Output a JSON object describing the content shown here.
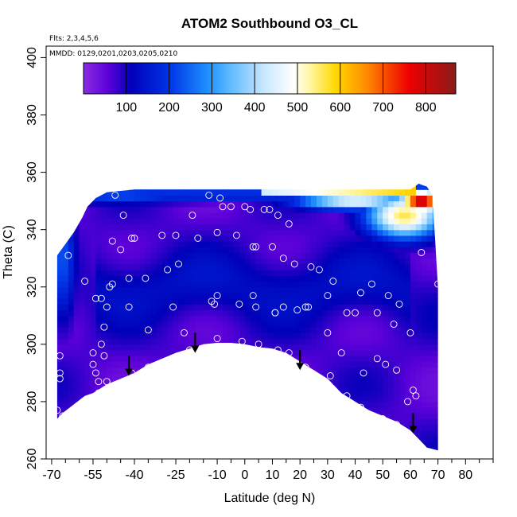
{
  "chart_data": {
    "type": "heatmap",
    "title": "ATOM2 Southbound O3_CL",
    "flights_note": "Flts: 2,3,4,5,6",
    "dates_note": "MMDD: 0129,0201,0203,0205,0210",
    "xlabel": "Latitude (deg N)",
    "ylabel": "Theta (C)",
    "xlim": [
      -72,
      90
    ],
    "ylim": [
      260,
      404
    ],
    "x_ticks": [
      -70,
      -55,
      -40,
      -25,
      -10,
      0,
      10,
      20,
      30,
      40,
      50,
      60,
      70,
      80
    ],
    "x_tick_labels": [
      "-70",
      "-55",
      "-40",
      "-25",
      "-10",
      "0",
      "10",
      "20",
      "30",
      "40",
      "50",
      "60",
      "70",
      "80"
    ],
    "x_minor_ticks": [
      -65,
      -60,
      -50,
      -45,
      -35,
      -30,
      -20,
      -15,
      -5,
      5,
      15,
      25,
      35,
      45,
      55,
      65,
      75,
      85,
      90
    ],
    "y_ticks": [
      260,
      280,
      300,
      320,
      340,
      360,
      380,
      400
    ],
    "y_tick_labels": [
      "260",
      "280",
      "300",
      "320",
      "340",
      "360",
      "380",
      "400"
    ],
    "colorbar": {
      "range": [
        0,
        870
      ],
      "ticks": [
        100,
        200,
        300,
        400,
        500,
        600,
        700,
        800
      ],
      "tick_labels": [
        "100",
        "200",
        "300",
        "400",
        "500",
        "600",
        "700",
        "800"
      ],
      "stops": [
        {
          "v": 0,
          "c": "#8a2be2"
        },
        {
          "v": 60,
          "c": "#5a00d8"
        },
        {
          "v": 110,
          "c": "#0000b8"
        },
        {
          "v": 200,
          "c": "#0033e6"
        },
        {
          "v": 290,
          "c": "#1e90ff"
        },
        {
          "v": 340,
          "c": "#5bb8ff"
        },
        {
          "v": 420,
          "c": "#c6e6ff"
        },
        {
          "v": 490,
          "c": "#ffffff"
        },
        {
          "v": 530,
          "c": "#fff6a0"
        },
        {
          "v": 590,
          "c": "#ffd700"
        },
        {
          "v": 660,
          "c": "#ff8c00"
        },
        {
          "v": 760,
          "c": "#ee0000"
        },
        {
          "v": 870,
          "c": "#8b1a1a"
        }
      ]
    },
    "surface_boundary": [
      [
        -68,
        274
      ],
      [
        -66,
        276
      ],
      [
        -62,
        279
      ],
      [
        -58,
        282
      ],
      [
        -55,
        283
      ],
      [
        -50,
        286
      ],
      [
        -45,
        288
      ],
      [
        -40,
        290
      ],
      [
        -35,
        293
      ],
      [
        -30,
        295
      ],
      [
        -25,
        297
      ],
      [
        -20,
        298.5
      ],
      [
        -15,
        300
      ],
      [
        -10,
        300.5
      ],
      [
        -5,
        300.5
      ],
      [
        0,
        300
      ],
      [
        5,
        299
      ],
      [
        10,
        298.5
      ],
      [
        15,
        297
      ],
      [
        20,
        294
      ],
      [
        25,
        291
      ],
      [
        30,
        288
      ],
      [
        35,
        283
      ],
      [
        40,
        280
      ],
      [
        45,
        277
      ],
      [
        50,
        275
      ],
      [
        55,
        273
      ],
      [
        60,
        270
      ],
      [
        63,
        267
      ],
      [
        66,
        264
      ],
      [
        70,
        263
      ]
    ],
    "top_boundary": [
      [
        -68,
        331
      ],
      [
        -65,
        335
      ],
      [
        -62,
        339
      ],
      [
        -59,
        344
      ],
      [
        -57,
        348
      ],
      [
        -54,
        351
      ],
      [
        -50,
        353
      ],
      [
        -40,
        354
      ],
      [
        -20,
        354
      ],
      [
        0,
        354
      ],
      [
        20,
        354
      ],
      [
        40,
        354
      ],
      [
        60,
        354
      ],
      [
        63,
        356
      ],
      [
        66,
        355
      ],
      [
        68,
        352
      ],
      [
        70,
        320
      ]
    ],
    "field_features": [
      {
        "name": "background",
        "value": 40
      },
      {
        "name": "upper-high-ozone-core",
        "lat": 64,
        "theta": 350,
        "value": 840,
        "lat_width": 8,
        "theta_width": 4
      },
      {
        "name": "upper-ozone-ridge",
        "lat": 58,
        "theta": 345,
        "value": 560,
        "lat_width": 14,
        "theta_width": 8
      },
      {
        "name": "subtropical-jet-band",
        "lat": 40,
        "theta": 350,
        "value": 480,
        "lat_width": 22,
        "theta_width": 3
      },
      {
        "name": "southern-upper-band",
        "lat": -45,
        "theta": 352,
        "value": 230,
        "lat_width": 30,
        "theta_width": 3
      },
      {
        "name": "southern-edge",
        "lat": -66,
        "theta": 330,
        "value": 230,
        "lat_width": 5,
        "theta_width": 22
      }
    ],
    "descent_arrows": [
      {
        "lat": -42,
        "theta_top": 296,
        "theta_bottom": 289
      },
      {
        "lat": -18,
        "theta_top": 304,
        "theta_bottom": 297
      },
      {
        "lat": 20,
        "theta_top": 298,
        "theta_bottom": 291
      },
      {
        "lat": 61,
        "theta_top": 276,
        "theta_bottom": 269
      }
    ],
    "observations": [
      [
        -68,
        277
      ],
      [
        -67,
        290
      ],
      [
        -67,
        288
      ],
      [
        -67,
        296
      ],
      [
        -66,
        275
      ],
      [
        -64,
        331
      ],
      [
        -58,
        322
      ],
      [
        -55,
        297
      ],
      [
        -55,
        293
      ],
      [
        -54,
        316
      ],
      [
        -54,
        290
      ],
      [
        -53,
        287
      ],
      [
        -53,
        283
      ],
      [
        -52,
        300
      ],
      [
        -52,
        316
      ],
      [
        -51,
        306
      ],
      [
        -51,
        296
      ],
      [
        -50,
        313
      ],
      [
        -50,
        287
      ],
      [
        -49,
        320
      ],
      [
        -48,
        321
      ],
      [
        -48,
        336
      ],
      [
        -47,
        352
      ],
      [
        -45,
        333
      ],
      [
        -44,
        345
      ],
      [
        -42,
        313
      ],
      [
        -42,
        323
      ],
      [
        -41,
        290
      ],
      [
        -41,
        337
      ],
      [
        -40,
        337
      ],
      [
        -36,
        323
      ],
      [
        -35,
        305
      ],
      [
        -35,
        292
      ],
      [
        -30,
        338
      ],
      [
        -28,
        326
      ],
      [
        -26,
        313
      ],
      [
        -25,
        338
      ],
      [
        -24,
        328
      ],
      [
        -22,
        304
      ],
      [
        -20,
        298
      ],
      [
        -19,
        345
      ],
      [
        -17,
        337
      ],
      [
        -13,
        352
      ],
      [
        -12,
        315
      ],
      [
        -11,
        314
      ],
      [
        -10,
        317
      ],
      [
        -10,
        302
      ],
      [
        -10,
        339
      ],
      [
        -9,
        351
      ],
      [
        -8,
        348
      ],
      [
        -5,
        348
      ],
      [
        -3,
        338
      ],
      [
        -2,
        314
      ],
      [
        0,
        348
      ],
      [
        -1,
        301
      ],
      [
        2,
        347
      ],
      [
        3,
        334
      ],
      [
        3,
        317
      ],
      [
        4,
        313
      ],
      [
        4,
        334
      ],
      [
        5,
        300
      ],
      [
        7,
        347
      ],
      [
        9,
        347
      ],
      [
        10,
        334
      ],
      [
        11,
        311
      ],
      [
        11,
        311
      ],
      [
        12,
        298
      ],
      [
        12,
        345
      ],
      [
        14,
        330
      ],
      [
        14,
        313
      ],
      [
        16,
        342
      ],
      [
        16,
        297
      ],
      [
        18,
        328
      ],
      [
        19,
        312
      ],
      [
        22,
        313
      ],
      [
        22,
        292
      ],
      [
        23,
        313
      ],
      [
        24,
        327
      ],
      [
        25,
        289
      ],
      [
        27,
        326
      ],
      [
        30,
        317
      ],
      [
        30,
        304
      ],
      [
        31,
        289
      ],
      [
        32,
        322
      ],
      [
        35,
        297
      ],
      [
        37,
        311
      ],
      [
        37,
        282
      ],
      [
        40,
        311
      ],
      [
        42,
        318
      ],
      [
        42,
        278
      ],
      [
        43,
        290
      ],
      [
        46,
        321
      ],
      [
        48,
        311
      ],
      [
        48,
        295
      ],
      [
        50,
        274
      ],
      [
        51,
        293
      ],
      [
        52,
        317
      ],
      [
        54,
        307
      ],
      [
        55,
        272
      ],
      [
        55,
        291
      ],
      [
        56,
        314
      ],
      [
        59,
        280
      ],
      [
        60,
        304
      ],
      [
        61,
        284
      ],
      [
        62,
        282
      ],
      [
        64,
        332
      ],
      [
        70,
        321
      ]
    ]
  }
}
